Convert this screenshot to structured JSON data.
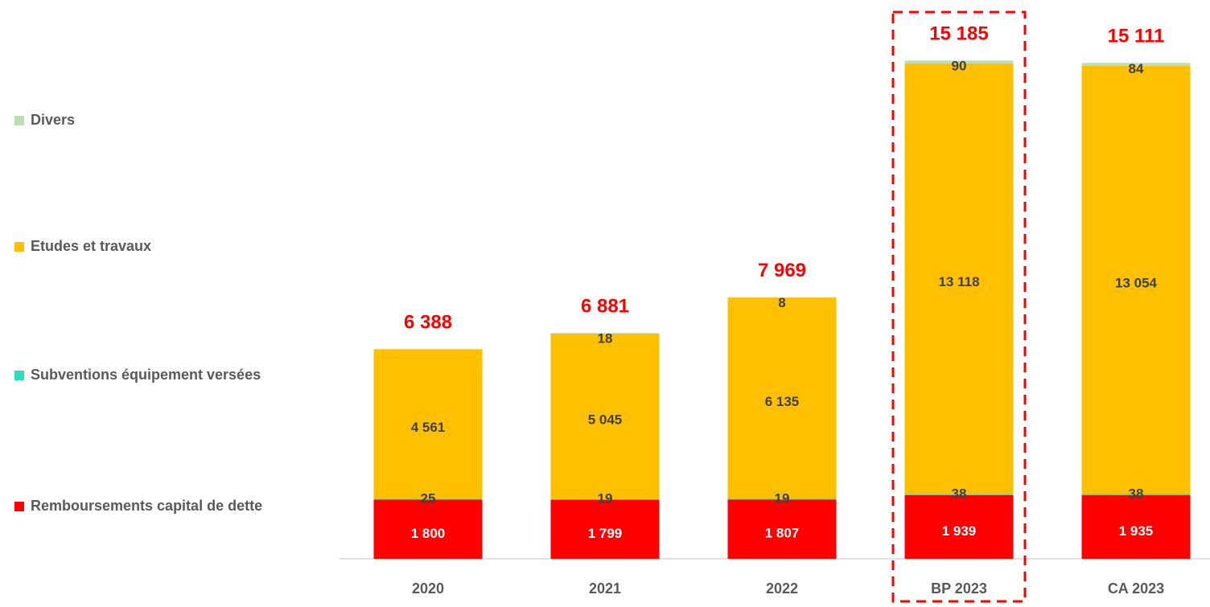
{
  "chart_data": {
    "type": "stacked_bar",
    "categories": [
      "2020",
      "2021",
      "2022",
      "BP 2023",
      "CA 2023"
    ],
    "series": [
      {
        "name": "Remboursements capital de dette",
        "color": "#ff0000",
        "values": [
          1800,
          1799,
          1807,
          1939,
          1935
        ],
        "value_labels": [
          "1 800",
          "1 799",
          "1 807",
          "1 939",
          "1 935"
        ]
      },
      {
        "name": "Subventions équipement versées",
        "color": "#2fdcc0",
        "values": [
          25,
          19,
          19,
          38,
          38
        ],
        "value_labels": [
          "25",
          "19",
          "19",
          "38",
          "38"
        ]
      },
      {
        "name": "Etudes et travaux",
        "color": "#ffc000",
        "values": [
          4561,
          5045,
          6135,
          13118,
          13054
        ],
        "value_labels": [
          "4 561",
          "5 045",
          "6 135",
          "13 118",
          "13 054"
        ]
      },
      {
        "name": "Divers",
        "color": "#b8dfb8",
        "values": [
          2,
          18,
          8,
          90,
          84
        ],
        "value_labels": [
          null,
          "18",
          "8",
          "90",
          "84"
        ]
      }
    ],
    "totals": [
      6388,
      6881,
      7969,
      15185,
      15111
    ],
    "total_labels": [
      "6 388",
      "6 881",
      "7 969",
      "15 185",
      "15 111"
    ],
    "ylim": [
      0,
      16000
    ],
    "highlight": "BP 2023",
    "legend": "left"
  }
}
